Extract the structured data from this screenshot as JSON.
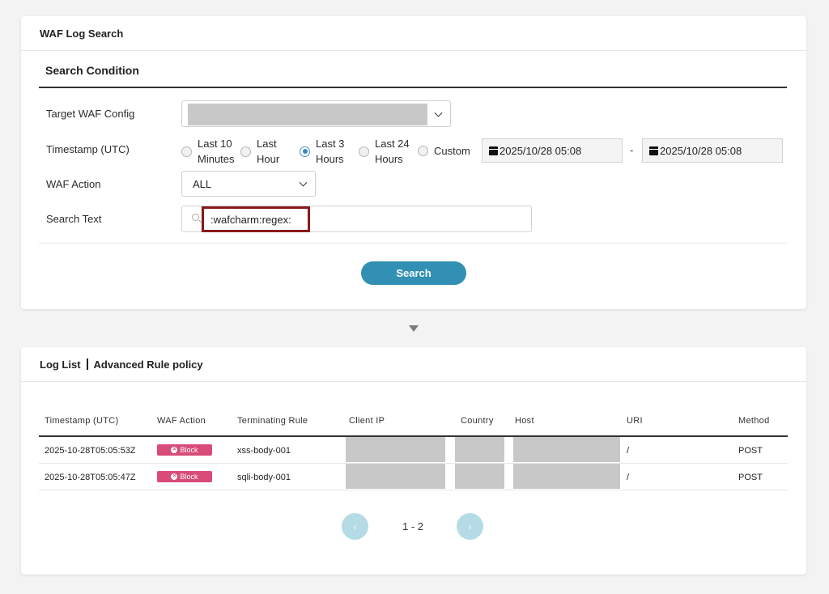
{
  "search_panel": {
    "title": "WAF Log Search",
    "section_title": "Search Condition",
    "labels": {
      "target_config": "Target WAF Config",
      "timestamp": "Timestamp (UTC)",
      "waf_action": "WAF Action",
      "search_text": "Search Text"
    },
    "time_options": [
      {
        "line1": "Last 10",
        "line2": "Minutes",
        "selected": false
      },
      {
        "line1": "Last",
        "line2": "Hour",
        "selected": false
      },
      {
        "line1": "Last 3",
        "line2": "Hours",
        "selected": true
      },
      {
        "line1": "Last 24",
        "line2": "Hours",
        "selected": false
      },
      {
        "line1": "Custom",
        "line2": "",
        "selected": false
      }
    ],
    "date_from": "2025/10/28 05:08",
    "date_separator": "-",
    "date_to": "2025/10/28 05:08",
    "waf_action_value": "ALL",
    "search_text_value": ":wafcharm:regex:",
    "search_button": "Search"
  },
  "log_panel": {
    "title_left": "Log List",
    "title_right": "Advanced Rule policy",
    "columns": [
      "Timestamp (UTC)",
      "WAF Action",
      "Terminating Rule",
      "Client IP",
      "Country",
      "Host",
      "URI",
      "Method"
    ],
    "rows": [
      {
        "timestamp": "2025-10-28T05:05:53Z",
        "action": "Block",
        "rule": "xss-body-001",
        "uri": "/",
        "method": "POST"
      },
      {
        "timestamp": "2025-10-28T05:05:47Z",
        "action": "Block",
        "rule": "sqli-body-001",
        "uri": "/",
        "method": "POST"
      }
    ],
    "pagination": {
      "prev": "‹",
      "range": "1 - 2",
      "next": "›"
    }
  },
  "colors": {
    "accent": "#3190b3",
    "block_badge": "#d94c7a",
    "highlight_border": "#8a1a1a"
  }
}
